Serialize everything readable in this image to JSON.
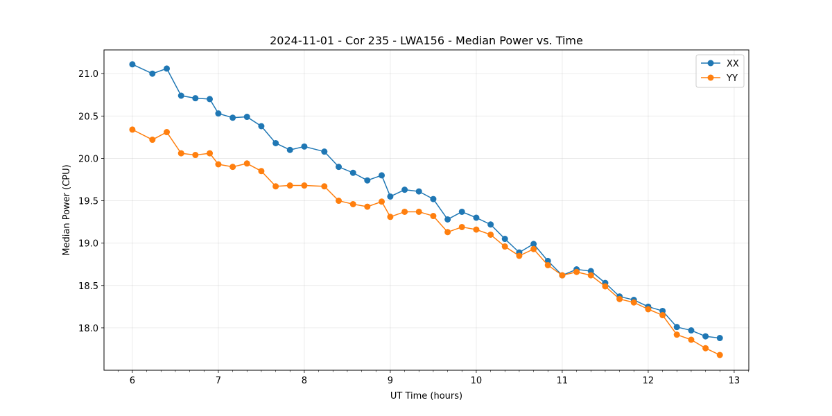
{
  "chart_data": {
    "type": "line",
    "title": "2024-11-01 - Cor 235 - LWA156 - Median Power vs. Time",
    "xlabel": "UT Time (hours)",
    "ylabel": "Median Power (CPU)",
    "xlim": [
      5.67,
      13.17
    ],
    "ylim": [
      17.5,
      21.28
    ],
    "xticks": [
      6,
      7,
      8,
      9,
      10,
      11,
      12,
      13
    ],
    "yticks": [
      18.0,
      18.5,
      19.0,
      19.5,
      20.0,
      20.5,
      21.0
    ],
    "grid": true,
    "legend_position": "top-right",
    "x": [
      6.0,
      6.233,
      6.4,
      6.567,
      6.733,
      6.9,
      7.0,
      7.167,
      7.333,
      7.5,
      7.667,
      7.833,
      8.0,
      8.233,
      8.4,
      8.567,
      8.733,
      8.9,
      9.0,
      9.167,
      9.333,
      9.5,
      9.667,
      9.833,
      10.0,
      10.167,
      10.333,
      10.5,
      10.667,
      10.833,
      11.0,
      11.167,
      11.333,
      11.5,
      11.667,
      11.833,
      12.0,
      12.167,
      12.333,
      12.5,
      12.667,
      12.833
    ],
    "series": [
      {
        "name": "XX",
        "color": "#1f77b4",
        "values": [
          21.11,
          21.0,
          21.06,
          20.74,
          20.71,
          20.7,
          20.53,
          20.48,
          20.49,
          20.38,
          20.18,
          20.1,
          20.14,
          20.08,
          19.9,
          19.83,
          19.74,
          19.8,
          19.55,
          19.63,
          19.61,
          19.52,
          19.28,
          19.37,
          19.3,
          19.22,
          19.05,
          18.89,
          18.99,
          18.79,
          18.62,
          18.69,
          18.67,
          18.53,
          18.37,
          18.33,
          18.25,
          18.2,
          18.01,
          17.97,
          17.9,
          17.88
        ]
      },
      {
        "name": "YY",
        "color": "#ff7f0e",
        "values": [
          20.34,
          20.22,
          20.31,
          20.06,
          20.04,
          20.06,
          19.93,
          19.9,
          19.94,
          19.85,
          19.67,
          19.68,
          19.68,
          19.67,
          19.5,
          19.46,
          19.43,
          19.49,
          19.31,
          19.37,
          19.37,
          19.32,
          19.13,
          19.19,
          19.16,
          19.1,
          18.96,
          18.85,
          18.93,
          18.74,
          18.62,
          18.66,
          18.62,
          18.49,
          18.34,
          18.3,
          18.22,
          18.15,
          17.92,
          17.86,
          17.76,
          17.68
        ]
      }
    ]
  }
}
